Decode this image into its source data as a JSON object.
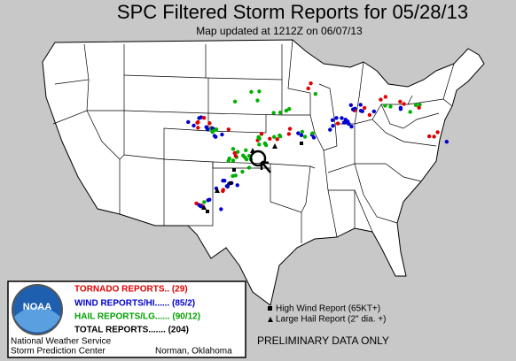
{
  "header": {
    "title": "SPC Filtered Storm Reports for 05/28/13",
    "subtitle": "Map updated at 1212Z on 06/07/13"
  },
  "legend": {
    "logo": "NOAA",
    "tornado": "TORNADO REPORTS.. (29)",
    "wind": "WIND REPORTS/HI...... (85/2)",
    "hail": "HAIL REPORTS/LG...... (90/12)",
    "total": "TOTAL REPORTS....... (204)",
    "office1": "National Weather Service",
    "office2": "Storm Prediction Center",
    "city": "Norman, Oklahoma"
  },
  "key": {
    "high_wind": "High Wind Report (65KT+)",
    "large_hail": "Large Hail Report (2\" dia. +)",
    "note": "PRELIMINARY DATA ONLY"
  }
}
